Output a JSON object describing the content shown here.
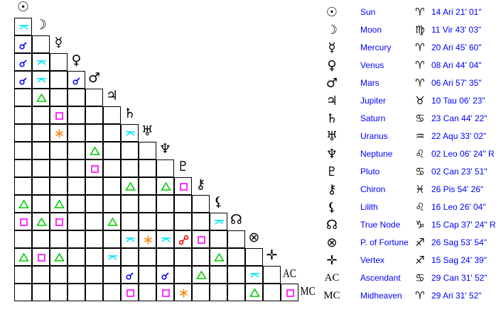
{
  "bodies": [
    {
      "glyph": "☉",
      "icon": "sun-icon",
      "name": "Sun",
      "sign_glyph": "♈",
      "sign_icon": "aries-icon",
      "position": "14 Ari 21' 01\""
    },
    {
      "glyph": "☽",
      "icon": "moon-icon",
      "name": "Moon",
      "sign_glyph": "♍",
      "sign_icon": "virgo-icon",
      "position": "11 Vir 43' 03\""
    },
    {
      "glyph": "☿",
      "icon": "mercury-icon",
      "name": "Mercury",
      "sign_glyph": "♈",
      "sign_icon": "aries-icon",
      "position": "20 Ari 45' 60\""
    },
    {
      "glyph": "♀",
      "icon": "venus-icon",
      "name": "Venus",
      "sign_glyph": "♈",
      "sign_icon": "aries-icon",
      "position": "08 Ari 44' 04\""
    },
    {
      "glyph": "♂",
      "icon": "mars-icon",
      "name": "Mars",
      "sign_glyph": "♈",
      "sign_icon": "aries-icon",
      "position": "06 Ari 57' 35\""
    },
    {
      "glyph": "♃",
      "icon": "jupiter-icon",
      "name": "Jupiter",
      "sign_glyph": "♉",
      "sign_icon": "taurus-icon",
      "position": "10 Tau 06' 23\""
    },
    {
      "glyph": "♄",
      "icon": "saturn-icon",
      "name": "Saturn",
      "sign_glyph": "♋",
      "sign_icon": "cancer-icon",
      "position": "23 Can 44' 22\""
    },
    {
      "glyph": "♅",
      "icon": "uranus-icon",
      "name": "Uranus",
      "sign_glyph": "♒",
      "sign_icon": "aquarius-icon",
      "position": "22 Aqu 33' 02\""
    },
    {
      "glyph": "♆",
      "icon": "neptune-icon",
      "name": "Neptune",
      "sign_glyph": "♌",
      "sign_icon": "leo-icon",
      "position": "02 Leo 06' 24\" R"
    },
    {
      "glyph": "♇",
      "icon": "pluto-icon",
      "name": "Pluto",
      "sign_glyph": "♋",
      "sign_icon": "cancer-icon",
      "position": "02 Can 23' 51\""
    },
    {
      "glyph": "⚷",
      "icon": "chiron-icon",
      "name": "Chiron",
      "sign_glyph": "♓",
      "sign_icon": "pisces-icon",
      "position": "26 Pis 54' 26\""
    },
    {
      "glyph": "⚸",
      "icon": "lilith-icon",
      "name": "Lilith",
      "sign_glyph": "♌",
      "sign_icon": "leo-icon",
      "position": "16 Leo 26' 04\""
    },
    {
      "glyph": "☊",
      "icon": "true-node-icon",
      "name": "True Node",
      "sign_glyph": "♑",
      "sign_icon": "capricorn-icon",
      "position": "15 Cap 37' 24\" R"
    },
    {
      "glyph": "⊗",
      "icon": "part-of-fortune-icon",
      "name": "P. of Fortune",
      "sign_glyph": "♐",
      "sign_icon": "sagittarius-icon",
      "position": "26 Sag 53' 54\""
    },
    {
      "glyph": "✛",
      "icon": "vertex-icon",
      "name": "Vertex",
      "sign_glyph": "♐",
      "sign_icon": "sagittarius-icon",
      "position": "15 Sag 24' 39\""
    },
    {
      "glyph": "AC",
      "icon": "ascendant-icon",
      "name": "Ascendant",
      "sign_glyph": "♋",
      "sign_icon": "cancer-icon",
      "position": "29 Can 31' 52\""
    },
    {
      "glyph": "MC",
      "icon": "midheaven-icon",
      "name": "Midheaven",
      "sign_glyph": "♈",
      "sign_icon": "aries-icon",
      "position": "29 Ari 31' 52\""
    }
  ],
  "aspect_colors": {
    "conjunction": "#0000ff",
    "quincunx": "#00e5ff",
    "trine": "#00cc00",
    "square": "#ff00ff",
    "sextile": "#ff8000",
    "opposition": "#ff0000"
  },
  "aspects": [
    {
      "row": 1,
      "col": 0,
      "type": "quincunx"
    },
    {
      "row": 2,
      "col": 0,
      "type": "conjunction"
    },
    {
      "row": 3,
      "col": 0,
      "type": "conjunction"
    },
    {
      "row": 3,
      "col": 1,
      "type": "quincunx"
    },
    {
      "row": 4,
      "col": 0,
      "type": "conjunction"
    },
    {
      "row": 4,
      "col": 1,
      "type": "quincunx"
    },
    {
      "row": 4,
      "col": 3,
      "type": "conjunction"
    },
    {
      "row": 5,
      "col": 1,
      "type": "trine"
    },
    {
      "row": 6,
      "col": 2,
      "type": "square"
    },
    {
      "row": 7,
      "col": 2,
      "type": "sextile"
    },
    {
      "row": 7,
      "col": 6,
      "type": "quincunx"
    },
    {
      "row": 8,
      "col": 4,
      "type": "trine"
    },
    {
      "row": 9,
      "col": 4,
      "type": "square"
    },
    {
      "row": 10,
      "col": 6,
      "type": "trine"
    },
    {
      "row": 10,
      "col": 8,
      "type": "trine"
    },
    {
      "row": 10,
      "col": 9,
      "type": "square"
    },
    {
      "row": 11,
      "col": 0,
      "type": "trine"
    },
    {
      "row": 11,
      "col": 2,
      "type": "trine"
    },
    {
      "row": 12,
      "col": 0,
      "type": "square"
    },
    {
      "row": 12,
      "col": 1,
      "type": "trine"
    },
    {
      "row": 12,
      "col": 2,
      "type": "square"
    },
    {
      "row": 12,
      "col": 5,
      "type": "trine"
    },
    {
      "row": 12,
      "col": 11,
      "type": "quincunx"
    },
    {
      "row": 13,
      "col": 6,
      "type": "quincunx"
    },
    {
      "row": 13,
      "col": 7,
      "type": "sextile"
    },
    {
      "row": 13,
      "col": 8,
      "type": "quincunx"
    },
    {
      "row": 13,
      "col": 9,
      "type": "opposition"
    },
    {
      "row": 13,
      "col": 10,
      "type": "square"
    },
    {
      "row": 14,
      "col": 0,
      "type": "trine"
    },
    {
      "row": 14,
      "col": 1,
      "type": "square"
    },
    {
      "row": 14,
      "col": 2,
      "type": "trine"
    },
    {
      "row": 14,
      "col": 5,
      "type": "quincunx"
    },
    {
      "row": 14,
      "col": 11,
      "type": "trine"
    },
    {
      "row": 15,
      "col": 6,
      "type": "conjunction"
    },
    {
      "row": 15,
      "col": 8,
      "type": "conjunction"
    },
    {
      "row": 15,
      "col": 10,
      "type": "trine"
    },
    {
      "row": 15,
      "col": 13,
      "type": "quincunx"
    },
    {
      "row": 16,
      "col": 6,
      "type": "square"
    },
    {
      "row": 16,
      "col": 8,
      "type": "square"
    },
    {
      "row": 16,
      "col": 9,
      "type": "sextile"
    },
    {
      "row": 16,
      "col": 13,
      "type": "trine"
    },
    {
      "row": 16,
      "col": 15,
      "type": "square"
    }
  ]
}
